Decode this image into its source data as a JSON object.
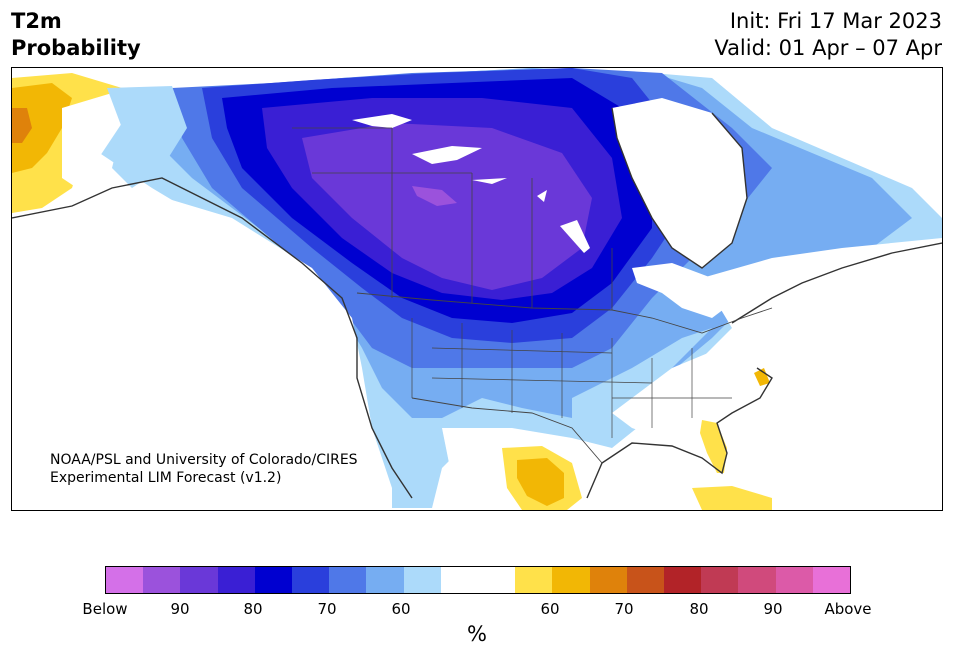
{
  "header": {
    "title_line1": "T2m",
    "title_line2": "Probability",
    "init": "Init: Fri 17 Mar 2023",
    "valid": "Valid: 01 Apr – 07 Apr"
  },
  "credit": {
    "line1": "NOAA/PSL and University of Colorado/CIRES",
    "line2": "Experimental LIM Forecast (v1.2)"
  },
  "colorbar": {
    "unit": "%",
    "colors": [
      "#d470e8",
      "#9b52dc",
      "#6a38d8",
      "#3a1fd4",
      "#0000d0",
      "#2a3fdc",
      "#4f78e8",
      "#76adf2",
      "#acdafa",
      "#ffffff",
      "#ffffff",
      "#ffe14a",
      "#f2b705",
      "#df820b",
      "#c8531a",
      "#b22328",
      "#c03a54",
      "#d04a7c",
      "#dc5aa8",
      "#e870d8"
    ],
    "ticks": [
      "Below",
      "90",
      "80",
      "70",
      "60",
      "60",
      "70",
      "80",
      "90",
      "Above"
    ]
  },
  "legend_colors": {
    "cold_extreme": "#6a38d8",
    "cold": "#0000d0",
    "cool": "#76adf2",
    "neutral": "#ffffff",
    "warm": "#f2b705"
  }
}
